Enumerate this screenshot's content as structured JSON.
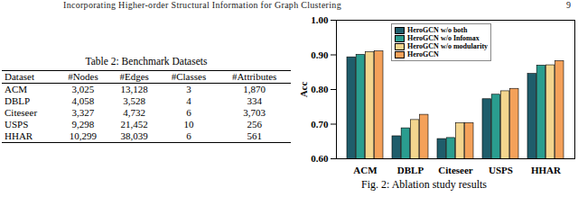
{
  "header": {
    "title": "Incorporating Higher-order Structural Information for Graph Clustering",
    "page": "9"
  },
  "table": {
    "caption": "Table 2: Benchmark Datasets",
    "columns": [
      "Dataset",
      "#Nodes",
      "#Edges",
      "#Classes",
      "#Attributes"
    ],
    "rows": [
      [
        "ACM",
        "3,025",
        "13,128",
        "3",
        "1,870"
      ],
      [
        "DBLP",
        "4,058",
        "3,528",
        "4",
        "334"
      ],
      [
        "Citeseer",
        "3,327",
        "4,732",
        "6",
        "3,703"
      ],
      [
        "USPS",
        "9,298",
        "21,452",
        "10",
        "256"
      ],
      [
        "HHAR",
        "10,299",
        "38,039",
        "6",
        "561"
      ]
    ]
  },
  "chart_data": {
    "type": "bar",
    "y_label": "Acc",
    "categories": [
      "ACM",
      "DBLP",
      "Citeseer",
      "USPS",
      "HHAR"
    ],
    "series": [
      {
        "name": "HeroGCN w/o both",
        "color": "#1f5d6b",
        "values": [
          0.893,
          0.665,
          0.657,
          0.772,
          0.845
        ]
      },
      {
        "name": "HeroGCN w/o Infomax",
        "color": "#2a9d8f",
        "values": [
          0.9,
          0.688,
          0.66,
          0.785,
          0.869
        ]
      },
      {
        "name": "HeroGCN w/o modularity",
        "color": "#f3d58e",
        "values": [
          0.908,
          0.712,
          0.703,
          0.795,
          0.87
        ]
      },
      {
        "name": "HeroGCN",
        "color": "#f4a15a",
        "values": [
          0.91,
          0.727,
          0.703,
          0.802,
          0.882
        ]
      }
    ],
    "ylim": [
      0.6,
      1.0
    ],
    "yticks": [
      {
        "value": 0.6,
        "label": "0.60"
      },
      {
        "value": 0.7,
        "label": "0.70"
      },
      {
        "value": 0.8,
        "label": "0.80"
      },
      {
        "value": 0.9,
        "label": "0.90"
      },
      {
        "value": 1.0,
        "label": "1.00"
      }
    ],
    "legend": "upper left",
    "grid": false
  },
  "figure_caption": "Fig. 2: Ablation study results"
}
